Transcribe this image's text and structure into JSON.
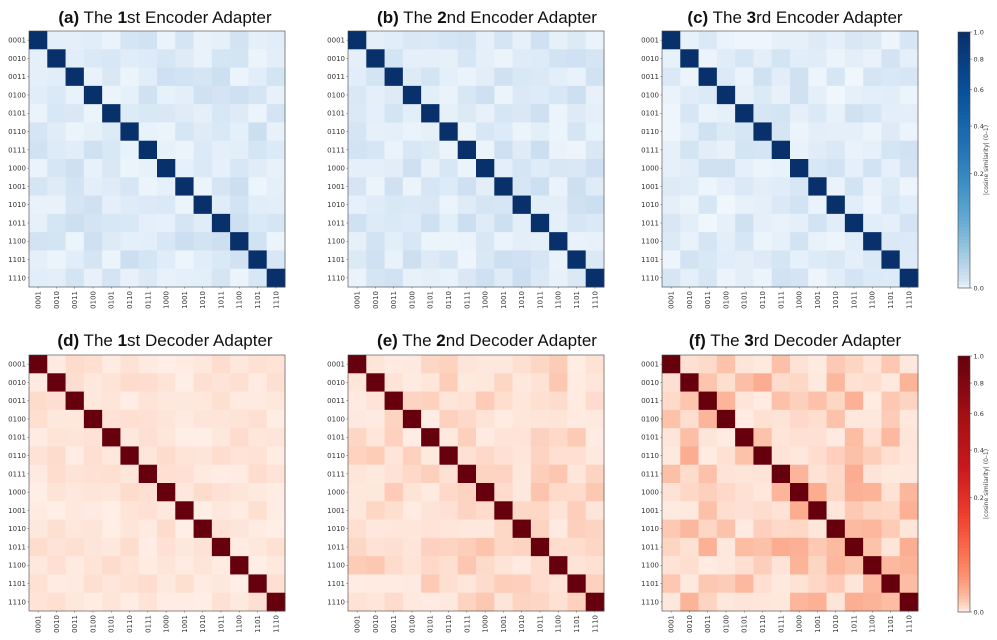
{
  "chart_data": [
    {
      "type": "heatmap",
      "panel": "(a)",
      "title": "The 1st Encoder Adapter",
      "title_prefix": "The ",
      "title_bold": "1",
      "title_suffix": "st Encoder Adapter",
      "colormap": "Blues",
      "seed": 11,
      "offdiag_range": [
        0.05,
        0.22
      ],
      "labels": [
        "0001",
        "0010",
        "0011",
        "0100",
        "0101",
        "0110",
        "0111",
        "1000",
        "1001",
        "1010",
        "1011",
        "1100",
        "1101",
        "1110"
      ],
      "diagonal": 1.0
    },
    {
      "type": "heatmap",
      "panel": "(b)",
      "title": "The 2nd Encoder Adapter",
      "title_prefix": "The ",
      "title_bold": "2",
      "title_suffix": "nd Encoder Adapter",
      "colormap": "Blues",
      "seed": 23,
      "offdiag_range": [
        0.05,
        0.22
      ],
      "labels": [
        "0001",
        "0010",
        "0011",
        "0100",
        "0101",
        "0110",
        "0111",
        "1000",
        "1001",
        "1010",
        "1011",
        "1100",
        "1101",
        "1110"
      ],
      "diagonal": 1.0
    },
    {
      "type": "heatmap",
      "panel": "(c)",
      "title": "The 3rd Encoder Adapter",
      "title_prefix": "The ",
      "title_bold": "3",
      "title_suffix": "rd Encoder Adapter",
      "colormap": "Blues",
      "seed": 37,
      "offdiag_range": [
        0.04,
        0.2
      ],
      "labels": [
        "0001",
        "0010",
        "0011",
        "0100",
        "0101",
        "0110",
        "0111",
        "1000",
        "1001",
        "1010",
        "1011",
        "1100",
        "1101",
        "1110"
      ],
      "diagonal": 1.0
    },
    {
      "type": "heatmap",
      "panel": "(d)",
      "title": "The 1st Decoder Adapter",
      "title_prefix": "The ",
      "title_bold": "1",
      "title_suffix": "st Decoder Adapter",
      "colormap": "Reds",
      "seed": 41,
      "offdiag_range": [
        0.04,
        0.14
      ],
      "labels": [
        "0001",
        "0010",
        "0011",
        "0100",
        "0101",
        "0110",
        "0111",
        "1000",
        "1001",
        "1010",
        "1011",
        "1100",
        "1101",
        "1110"
      ],
      "diagonal": 1.0
    },
    {
      "type": "heatmap",
      "panel": "(e)",
      "title": "The 2nd Decoder Adapter",
      "title_prefix": "The ",
      "title_bold": "2",
      "title_suffix": "nd Decoder Adapter",
      "colormap": "Reds",
      "seed": 53,
      "offdiag_range": [
        0.05,
        0.22
      ],
      "labels": [
        "0001",
        "0010",
        "0011",
        "0100",
        "0101",
        "0110",
        "0111",
        "1000",
        "1001",
        "1010",
        "1011",
        "1100",
        "1101",
        "1110"
      ],
      "diagonal": 1.0
    },
    {
      "type": "heatmap",
      "panel": "(f)",
      "title": "The 3rd Decoder Adapter",
      "title_prefix": "The ",
      "title_bold": "3",
      "title_suffix": "rd Decoder Adapter",
      "colormap": "Reds",
      "seed": 67,
      "offdiag_range": [
        0.06,
        0.3
      ],
      "labels": [
        "0001",
        "0010",
        "0011",
        "0100",
        "0101",
        "0110",
        "0111",
        "1000",
        "1001",
        "1010",
        "1011",
        "1100",
        "1101",
        "1110"
      ],
      "diagonal": 1.0
    }
  ],
  "colorbars": [
    {
      "colormap": "Blues",
      "label": "|cosine similarity| (0–1)",
      "ticks": [
        "0.0",
        "0.2",
        "0.4",
        "0.6",
        "0.8",
        "1.0"
      ],
      "range": [
        0,
        1
      ]
    },
    {
      "colormap": "Reds",
      "label": "|cosine similarity| (0–1)",
      "ticks": [
        "0.0",
        "0.2",
        "0.4",
        "0.6",
        "0.8",
        "1.0"
      ],
      "range": [
        0,
        1
      ]
    }
  ],
  "colors": {
    "blue_high": "#08306b",
    "blue_low": "#f7fbff",
    "red_high": "#67000d",
    "red_low": "#fff5f0"
  }
}
